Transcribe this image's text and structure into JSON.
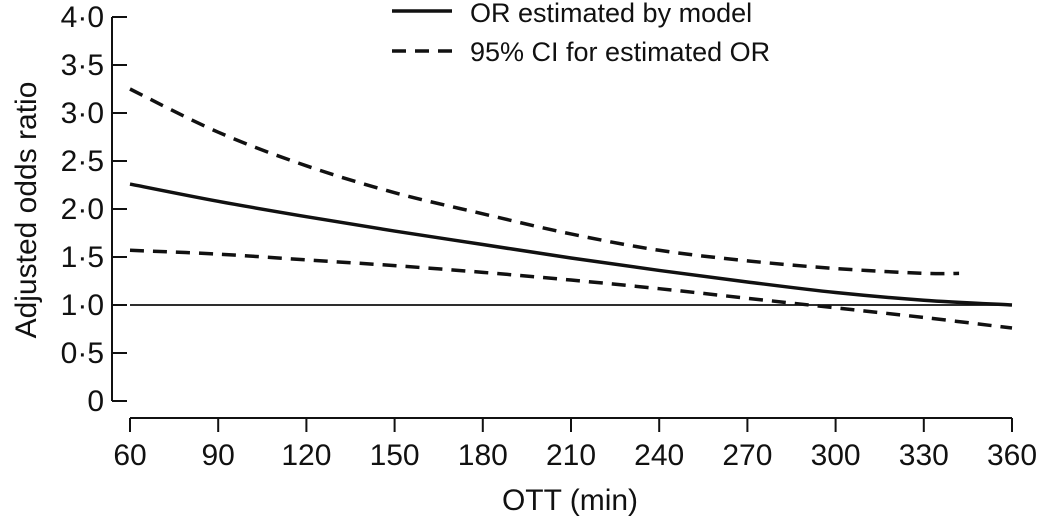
{
  "chart_data": {
    "type": "line",
    "title": "",
    "xlabel": "OTT (min)",
    "ylabel": "Adjusted odds ratio",
    "xlim": [
      60,
      360
    ],
    "ylim": [
      0,
      4
    ],
    "x_ticks": [
      60,
      90,
      120,
      150,
      180,
      210,
      240,
      270,
      300,
      330,
      360
    ],
    "y_ticks": [
      {
        "value": 0,
        "label": "0"
      },
      {
        "value": 0.5,
        "label": "0·5"
      },
      {
        "value": 1.0,
        "label": "1·0"
      },
      {
        "value": 1.5,
        "label": "1·5"
      },
      {
        "value": 2.0,
        "label": "2·0"
      },
      {
        "value": 2.5,
        "label": "2·5"
      },
      {
        "value": 3.0,
        "label": "3·0"
      },
      {
        "value": 3.5,
        "label": "3·5"
      },
      {
        "value": 4.0,
        "label": "4·0"
      }
    ],
    "grid": false,
    "legend_position": "top-right",
    "reference_line": {
      "y": 1.0,
      "style": "solid-thin"
    },
    "series": [
      {
        "name": "OR estimated by model",
        "style": "solid",
        "color": "#111111",
        "x": [
          60,
          90,
          120,
          150,
          180,
          210,
          240,
          270,
          300,
          330,
          360
        ],
        "y": [
          2.26,
          2.08,
          1.92,
          1.77,
          1.63,
          1.49,
          1.36,
          1.24,
          1.13,
          1.05,
          1.0
        ]
      },
      {
        "name": "95% CI for estimated OR",
        "style": "dashed",
        "color": "#111111",
        "x": [
          60,
          90,
          120,
          150,
          180,
          210,
          240,
          270,
          300,
          330,
          342
        ],
        "y": [
          3.25,
          2.8,
          2.45,
          2.17,
          1.95,
          1.74,
          1.57,
          1.46,
          1.38,
          1.33,
          1.33
        ]
      },
      {
        "name": "",
        "style": "dashed",
        "color": "#111111",
        "x": [
          60,
          90,
          120,
          150,
          180,
          210,
          240,
          270,
          300,
          330,
          360
        ],
        "y": [
          1.57,
          1.53,
          1.47,
          1.41,
          1.34,
          1.26,
          1.17,
          1.07,
          0.97,
          0.87,
          0.76
        ]
      }
    ]
  }
}
